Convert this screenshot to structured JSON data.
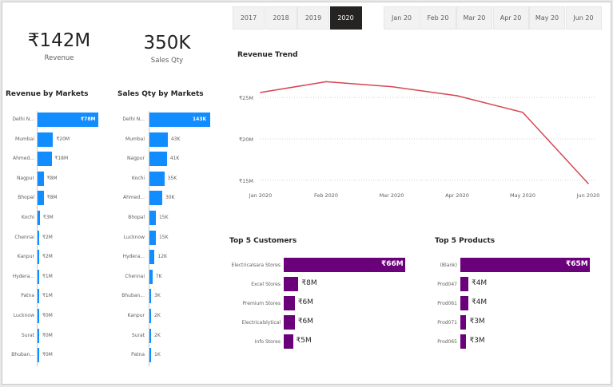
{
  "year_slicer": {
    "items": [
      "2017",
      "2018",
      "2019",
      "2020"
    ],
    "selected": "2020"
  },
  "month_slicer": {
    "items": [
      "Jan 20",
      "Feb 20",
      "Mar 20",
      "Apr 20",
      "May 20",
      "Jun 20"
    ]
  },
  "kpis": {
    "revenue": {
      "value": "₹142M",
      "label": "Revenue"
    },
    "sales_qty": {
      "value": "350K",
      "label": "Sales Qty"
    }
  },
  "colors": {
    "markets_bar": "#118dff",
    "top5_bar": "#6b007b",
    "trend_line": "#d64550",
    "slicer_selected": "#252423"
  },
  "chart_data": [
    {
      "type": "bar",
      "title": "Revenue by Markets",
      "categories": [
        "Delhi N...",
        "Mumbai",
        "Ahmed...",
        "Nagpur",
        "Bhopal",
        "Kochi",
        "Chennai",
        "Kanpur",
        "Hydera...",
        "Patna",
        "Lucknow",
        "Surat",
        "Bhuban..."
      ],
      "values": [
        78,
        20,
        18,
        8,
        8,
        3,
        2,
        2,
        1,
        1,
        0,
        0,
        0
      ],
      "labels": [
        "₹78M",
        "₹20M",
        "₹18M",
        "₹8M",
        "₹8M",
        "₹3M",
        "₹2M",
        "₹2M",
        "₹1M",
        "₹1M",
        "₹0M",
        "₹0M",
        "₹0M"
      ]
    },
    {
      "type": "bar",
      "title": "Sales Qty by Markets",
      "categories": [
        "Delhi N...",
        "Mumbai",
        "Nagpur",
        "Kochi",
        "Ahmed...",
        "Bhopal",
        "Lucknow",
        "Hydera...",
        "Chennai",
        "Bhuban...",
        "Kanpur",
        "Surat",
        "Patna"
      ],
      "values": [
        143,
        43,
        41,
        35,
        30,
        15,
        15,
        12,
        7,
        3,
        2,
        2,
        1
      ],
      "labels": [
        "143K",
        "43K",
        "41K",
        "35K",
        "30K",
        "15K",
        "15K",
        "12K",
        "7K",
        "3K",
        "2K",
        "2K",
        "1K"
      ]
    },
    {
      "type": "line",
      "title": "Revenue Trend",
      "x": [
        "Jan 2020",
        "Feb 2020",
        "Mar 2020",
        "Apr 2020",
        "May 2020",
        "Jun 2020"
      ],
      "values": [
        25.6,
        26.9,
        26.3,
        25.2,
        23.2,
        14.6
      ],
      "yticks": [
        "₹25M",
        "₹20M",
        "₹15M"
      ],
      "ytick_values": [
        25,
        20,
        15
      ],
      "ylim": [
        14.5,
        28
      ],
      "grid": true
    },
    {
      "type": "bar",
      "title": "Top 5 Customers",
      "categories": [
        "Electricalsara Stores",
        "Excel Stores",
        "Premium Stores",
        "Electricalslytical",
        "Info Stores"
      ],
      "values": [
        66,
        8,
        6,
        6,
        5
      ],
      "labels": [
        "₹66M",
        "₹8M",
        "₹6M",
        "₹6M",
        "₹5M"
      ]
    },
    {
      "type": "bar",
      "title": "Top 5 Products",
      "categories": [
        "(Blank)",
        "Prod047",
        "Prod061",
        "Prod071",
        "Prod065"
      ],
      "values": [
        65,
        4,
        4,
        3,
        3
      ],
      "labels": [
        "₹65M",
        "₹4M",
        "₹4M",
        "₹3M",
        "₹3M"
      ]
    }
  ]
}
